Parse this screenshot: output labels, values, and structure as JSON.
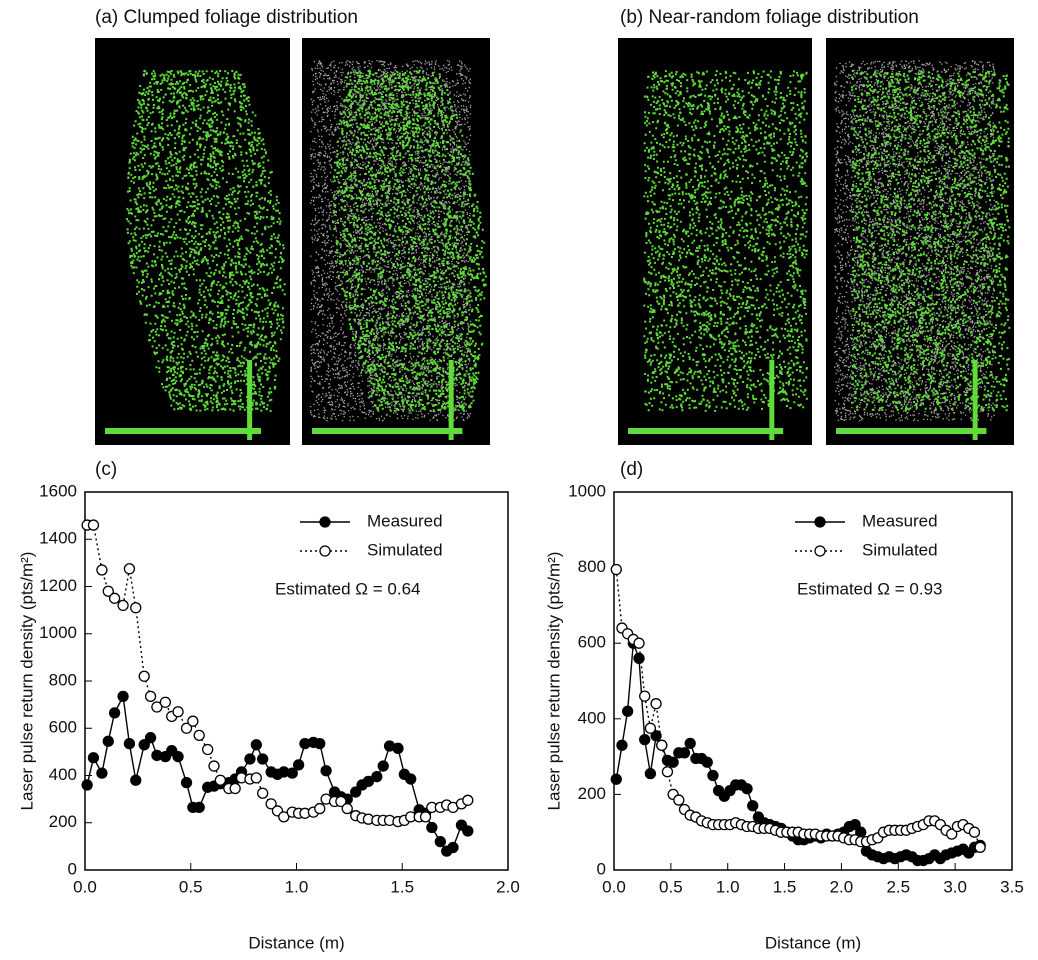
{
  "images": [
    {
      "title": "(a) Clumped foliage distribution"
    },
    {
      "title": "(b) Near-random foliage distribution"
    }
  ],
  "chart_data": [
    {
      "type": "line",
      "title": "(c)",
      "x_label": "Distance (m)",
      "y_label": "Laser pulse return density (pts/m²)",
      "annotation": "Estimated Ω = 0.64",
      "xlim": [
        0,
        2.0
      ],
      "xticks": [
        {
          "value": 0,
          "label": "0.0"
        },
        {
          "value": 0.5,
          "label": "0.5"
        },
        {
          "value": 1.0,
          "label": "1.0"
        },
        {
          "value": 1.5,
          "label": "1.5"
        },
        {
          "value": 2.0,
          "label": "2.0"
        }
      ],
      "ylim": [
        0,
        1600
      ],
      "yticks": [
        0,
        200,
        400,
        600,
        800,
        1000,
        1200,
        1400,
        1600
      ],
      "grid": false,
      "legend": "upper right",
      "x": [
        0.01,
        0.04,
        0.08,
        0.11,
        0.14,
        0.18,
        0.21,
        0.24,
        0.28,
        0.31,
        0.34,
        0.38,
        0.41,
        0.44,
        0.48,
        0.51,
        0.54,
        0.58,
        0.61,
        0.64,
        0.68,
        0.71,
        0.74,
        0.78,
        0.81,
        0.84,
        0.88,
        0.91,
        0.94,
        0.98,
        1.01,
        1.04,
        1.08,
        1.11,
        1.14,
        1.18,
        1.21,
        1.24,
        1.28,
        1.31,
        1.34,
        1.38,
        1.41,
        1.44,
        1.48,
        1.51,
        1.54,
        1.58,
        1.61,
        1.64,
        1.68,
        1.71,
        1.74,
        1.78,
        1.81
      ],
      "series": [
        {
          "name": "Measured",
          "color": "#000000",
          "marker": "filled",
          "line_style": "solid",
          "values": [
            360,
            475,
            410,
            545,
            665,
            735,
            535,
            380,
            530,
            560,
            485,
            480,
            505,
            480,
            370,
            265,
            265,
            350,
            355,
            365,
            370,
            385,
            415,
            470,
            530,
            470,
            415,
            405,
            415,
            410,
            445,
            535,
            540,
            535,
            420,
            330,
            310,
            300,
            330,
            360,
            375,
            395,
            440,
            525,
            515,
            405,
            385,
            255,
            240,
            180,
            120,
            80,
            95,
            190,
            165
          ]
        },
        {
          "name": "Simulated",
          "color": "#000000",
          "marker": "open",
          "line_style": "dotted",
          "values": [
            1460,
            1460,
            1270,
            1180,
            1150,
            1120,
            1275,
            1110,
            820,
            735,
            690,
            710,
            650,
            670,
            600,
            630,
            570,
            510,
            440,
            380,
            345,
            345,
            390,
            385,
            390,
            325,
            280,
            250,
            225,
            245,
            240,
            240,
            245,
            260,
            300,
            290,
            290,
            260,
            230,
            220,
            215,
            210,
            210,
            210,
            205,
            210,
            225,
            225,
            225,
            265,
            265,
            275,
            265,
            280,
            295
          ]
        }
      ]
    },
    {
      "type": "line",
      "title": "(d)",
      "x_label": "Distance (m)",
      "y_label": "Laser pulse return density (pts/m²)",
      "annotation": "Estimated Ω = 0.93",
      "xlim": [
        0,
        3.5
      ],
      "xticks": [
        {
          "value": 0,
          "label": "0.0"
        },
        {
          "value": 0.5,
          "label": "0.5"
        },
        {
          "value": 1.0,
          "label": "1.0"
        },
        {
          "value": 1.5,
          "label": "1.5"
        },
        {
          "value": 2.0,
          "label": "2.0"
        },
        {
          "value": 2.5,
          "label": "2.5"
        },
        {
          "value": 3.0,
          "label": "3.0"
        },
        {
          "value": 3.5,
          "label": "3.5"
        }
      ],
      "ylim": [
        0,
        1000
      ],
      "yticks": [
        0,
        200,
        400,
        600,
        800,
        1000
      ],
      "grid": false,
      "legend": "upper right",
      "x": [
        0.02,
        0.07,
        0.12,
        0.17,
        0.22,
        0.27,
        0.32,
        0.37,
        0.42,
        0.47,
        0.52,
        0.57,
        0.62,
        0.67,
        0.72,
        0.77,
        0.82,
        0.87,
        0.92,
        0.97,
        1.02,
        1.07,
        1.12,
        1.17,
        1.22,
        1.27,
        1.32,
        1.37,
        1.42,
        1.47,
        1.52,
        1.57,
        1.62,
        1.67,
        1.72,
        1.77,
        1.82,
        1.87,
        1.92,
        1.97,
        2.02,
        2.07,
        2.12,
        2.17,
        2.22,
        2.27,
        2.32,
        2.37,
        2.42,
        2.47,
        2.52,
        2.57,
        2.62,
        2.67,
        2.72,
        2.77,
        2.82,
        2.87,
        2.92,
        2.97,
        3.02,
        3.07,
        3.12,
        3.17,
        3.22
      ],
      "series": [
        {
          "name": "Measured",
          "color": "#000000",
          "marker": "filled",
          "line_style": "solid",
          "values": [
            240,
            330,
            420,
            600,
            560,
            345,
            255,
            355,
            330,
            290,
            285,
            310,
            310,
            335,
            295,
            295,
            285,
            250,
            210,
            195,
            210,
            225,
            225,
            215,
            170,
            140,
            125,
            120,
            115,
            110,
            100,
            90,
            80,
            80,
            85,
            90,
            85,
            95,
            90,
            95,
            100,
            115,
            120,
            100,
            50,
            40,
            35,
            30,
            35,
            30,
            35,
            40,
            35,
            25,
            25,
            30,
            40,
            30,
            40,
            45,
            50,
            55,
            45,
            60,
            65
          ]
        },
        {
          "name": "Simulated",
          "color": "#000000",
          "marker": "open",
          "line_style": "dotted",
          "values": [
            795,
            640,
            625,
            610,
            600,
            460,
            375,
            440,
            330,
            260,
            200,
            185,
            160,
            145,
            140,
            130,
            125,
            120,
            120,
            120,
            120,
            125,
            120,
            115,
            115,
            110,
            110,
            110,
            105,
            100,
            100,
            100,
            100,
            95,
            95,
            95,
            90,
            90,
            90,
            90,
            85,
            80,
            80,
            75,
            75,
            80,
            85,
            100,
            105,
            105,
            105,
            105,
            110,
            115,
            120,
            130,
            130,
            120,
            105,
            95,
            115,
            120,
            110,
            100,
            60
          ]
        }
      ]
    }
  ]
}
